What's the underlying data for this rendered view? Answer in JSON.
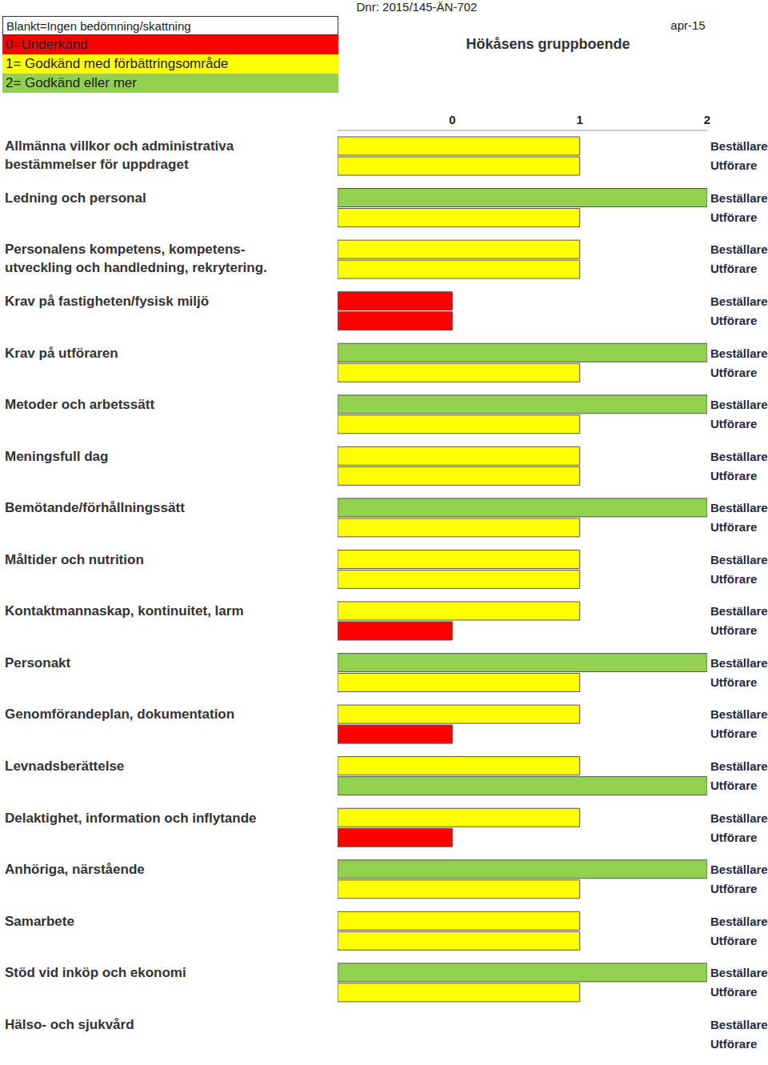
{
  "chart_data": {
    "type": "bar",
    "orientation": "horizontal",
    "title": "Hökåsens gruppboende",
    "subtitle": "Dnr: 2015/145-ÄN-702",
    "date": "apr-15",
    "rating_scale": [
      {
        "label": "Blankt=Ingen bedömning/skattning",
        "value": null,
        "color": "#ffffff"
      },
      {
        "label": "0=Underkänd",
        "value": 0,
        "color": "#ff0000"
      },
      {
        "label": "1= Godkänd med förbättringsområde",
        "value": 1,
        "color": "#ffff00"
      },
      {
        "label": "2= Godkänd eller mer",
        "value": 2,
        "color": "#92d050"
      }
    ],
    "categories": [
      "Allmänna villkor och administrativa bestämmelser för uppdraget",
      "Ledning och personal",
      "Personalens kompetens, kompetens-utveckling och handledning, rekrytering.",
      "Krav på fastigheten/fysisk miljö",
      "Krav på utföraren",
      "Metoder och arbetssätt",
      "Meningsfull dag",
      "Bemötande/förhållningssätt",
      "Måltider och nutrition",
      "Kontaktmannaskap, kontinuitet, larm",
      "Personakt",
      "Genomförandeplan, dokumentation",
      "Levnadsberättelse",
      "Delaktighet, information och inflytande",
      "Anhöriga, närstående",
      "Samarbete",
      "Stöd vid inköp och ekonomi",
      "Hälso- och sjukvård"
    ],
    "series": [
      {
        "name": "Beställare",
        "values": [
          1,
          2,
          1,
          0,
          2,
          2,
          1,
          2,
          1,
          1,
          2,
          1,
          1,
          1,
          2,
          1,
          2,
          null
        ],
        "colors": [
          "#ffff00",
          "#92d050",
          "#ffff00",
          "#ff0000",
          "#92d050",
          "#92d050",
          "#ffff00",
          "#92d050",
          "#ffff00",
          "#ffff00",
          "#92d050",
          "#ffff00",
          "#ffff00",
          "#ffff00",
          "#92d050",
          "#ffff00",
          "#92d050",
          "#ffffff"
        ]
      },
      {
        "name": "Utförare",
        "values": [
          1,
          1,
          1,
          0,
          1,
          1,
          1,
          1,
          1,
          0,
          1,
          0,
          2,
          0,
          1,
          1,
          1,
          null
        ],
        "colors": [
          "#ffff00",
          "#ffff00",
          "#ffff00",
          "#ff0000",
          "#ffff00",
          "#ffff00",
          "#ffff00",
          "#ffff00",
          "#ffff00",
          "#ff0000",
          "#ffff00",
          "#ff0000",
          "#92d050",
          "#ff0000",
          "#ffff00",
          "#ffff00",
          "#ffff00",
          "#ffffff"
        ]
      }
    ],
    "xlim": [
      -0.9,
      2
    ],
    "xticks": [
      0,
      1,
      2
    ],
    "grid": false
  }
}
